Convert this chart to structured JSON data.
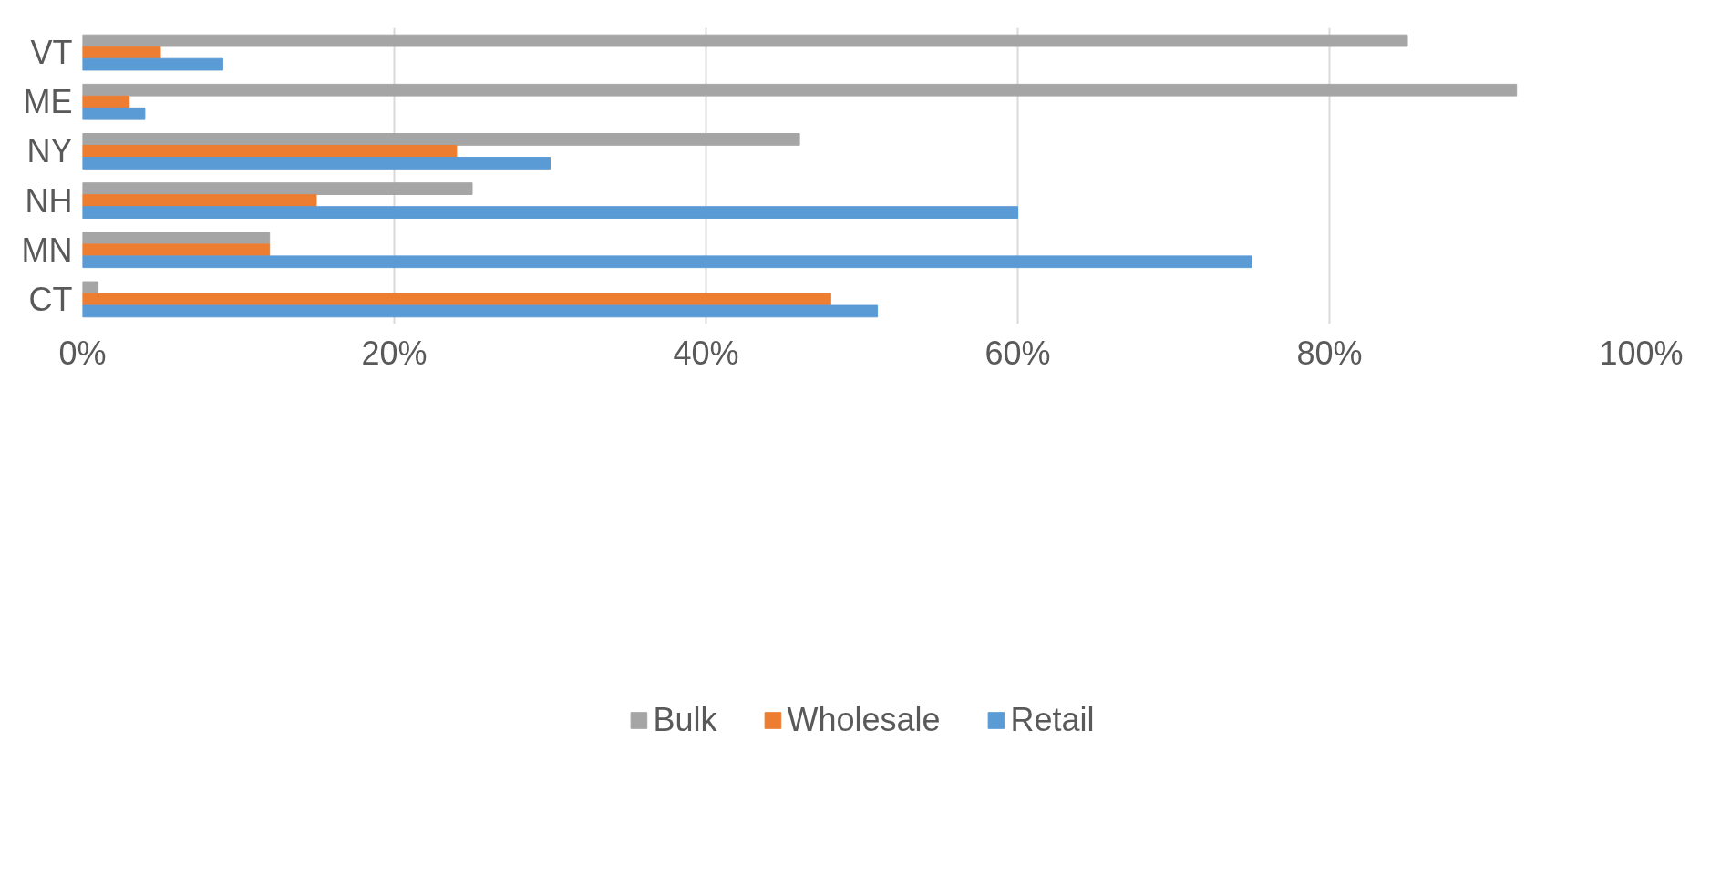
{
  "chart_data": {
    "type": "bar",
    "orientation": "horizontal",
    "categories": [
      "VT",
      "ME",
      "NY",
      "NH",
      "MN",
      "CT"
    ],
    "series": [
      {
        "name": "Bulk",
        "color": "#a5a5a5",
        "values": [
          85,
          92,
          46,
          25,
          12,
          1
        ]
      },
      {
        "name": "Wholesale",
        "color": "#ed7d31",
        "values": [
          5,
          3,
          24,
          15,
          12,
          48
        ]
      },
      {
        "name": "Retail",
        "color": "#5b9bd5",
        "values": [
          9,
          4,
          30,
          60,
          75,
          51
        ]
      }
    ],
    "xlim": [
      0,
      100
    ],
    "xticks": [
      {
        "value": 0,
        "label": "0%"
      },
      {
        "value": 20,
        "label": "20%"
      },
      {
        "value": 40,
        "label": "40%"
      },
      {
        "value": 60,
        "label": "60%"
      },
      {
        "value": 80,
        "label": "80%"
      },
      {
        "value": 100,
        "label": "100%"
      }
    ],
    "grid": "x",
    "legend": "bottom"
  }
}
